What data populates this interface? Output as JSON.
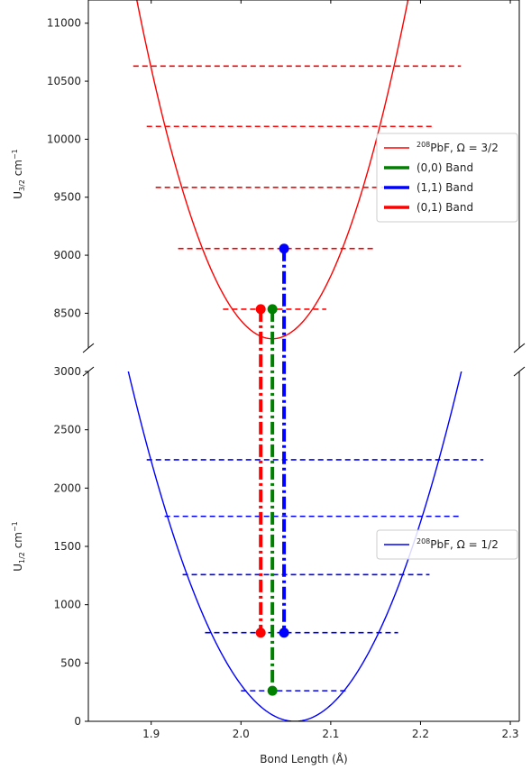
{
  "chart_data": [
    {
      "type": "line",
      "panel": "upper",
      "ylabel": "U",
      "ylabel_sub": "3/2",
      "ylabel_unit": "cm",
      "ylabel_exp": "−1",
      "xlim": [
        1.83,
        2.31
      ],
      "ylim": [
        8200,
        11200
      ],
      "yticks": [
        8500,
        9000,
        9500,
        10000,
        10500,
        11000
      ],
      "xticks": [
        1.9,
        2.0,
        2.1,
        2.2,
        2.3
      ],
      "grid": false,
      "curve": {
        "color": "#ff0000",
        "min_x": 2.035,
        "min_y": 8280,
        "curvature": 128000
      },
      "levels": [
        {
          "y": 8535,
          "x_start": 1.98,
          "x_end": 2.095
        },
        {
          "y": 9057,
          "x_start": 1.93,
          "x_end": 2.15
        },
        {
          "y": 9585,
          "x_start": 1.905,
          "x_end": 2.175
        },
        {
          "y": 10110,
          "x_start": 1.895,
          "x_end": 2.215
        },
        {
          "y": 10630,
          "x_start": 1.88,
          "x_end": 2.245
        }
      ],
      "legend": {
        "location": "right",
        "entries": [
          {
            "prefix_sup": "208",
            "text": "PbF, Ω = 3/2",
            "color": "#ff0000",
            "style": "solid"
          },
          {
            "text": "(0,0) Band",
            "color": "#008000",
            "style": "thick"
          },
          {
            "text": "(1,1) Band",
            "color": "#0000ff",
            "style": "thick"
          },
          {
            "text": "(0,1) Band",
            "color": "#ff0000",
            "style": "thick"
          }
        ]
      }
    },
    {
      "type": "line",
      "panel": "lower",
      "xlabel": "Bond Length (Å)",
      "ylabel": "U",
      "ylabel_sub": "1/2",
      "ylabel_unit": "cm",
      "ylabel_exp": "−1",
      "xlim": [
        1.83,
        2.31
      ],
      "ylim": [
        0,
        3000
      ],
      "yticks": [
        0,
        500,
        1000,
        1500,
        2000,
        2500,
        3000
      ],
      "xticks": [
        1.9,
        2.0,
        2.1,
        2.2,
        2.3
      ],
      "xticklabels": [
        "1.9",
        "2.0",
        "2.1",
        "2.2",
        "2.3"
      ],
      "grid": false,
      "curve": {
        "color": "#0000ff",
        "min_x": 2.06,
        "min_y": 0,
        "curvature": 87200
      },
      "levels": [
        {
          "y": 262,
          "x_start": 2.0,
          "x_end": 2.12
        },
        {
          "y": 760,
          "x_start": 1.96,
          "x_end": 2.175
        },
        {
          "y": 1258,
          "x_start": 1.935,
          "x_end": 2.21
        },
        {
          "y": 1758,
          "x_start": 1.915,
          "x_end": 2.245
        },
        {
          "y": 2243,
          "x_start": 1.895,
          "x_end": 2.27
        }
      ],
      "legend": {
        "location": "right",
        "entries": [
          {
            "prefix_sup": "208",
            "text": "PbF, Ω = 1/2",
            "color": "#0000ff",
            "style": "solid"
          }
        ]
      }
    }
  ],
  "transitions": [
    {
      "band": "(0,0) Band",
      "color": "#008000",
      "x": 2.035,
      "lower_y": 262,
      "upper_y": 8535
    },
    {
      "band": "(1,1) Band",
      "color": "#0000ff",
      "x": 2.048,
      "lower_y": 760,
      "upper_y": 9057
    },
    {
      "band": "(0,1) Band",
      "color": "#ff0000",
      "x": 2.022,
      "lower_y": 760,
      "upper_y": 8535
    }
  ]
}
